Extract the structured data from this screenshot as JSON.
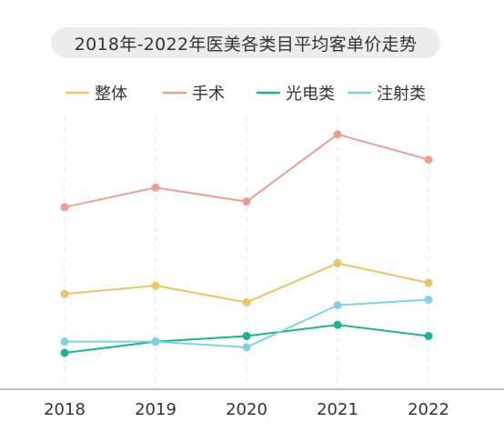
{
  "chart_data": {
    "type": "line",
    "title": "2018年-2022年医美各类目平均客单价走势",
    "categories": [
      "2018",
      "2019",
      "2020",
      "2021",
      "2022"
    ],
    "ylim": [
      0,
      100
    ],
    "grid": "vertical-dashed",
    "legend_position": "top",
    "series": [
      {
        "name": "整体",
        "color": "#e8c46a",
        "values": [
          34,
          37,
          31,
          45,
          38
        ]
      },
      {
        "name": "手术",
        "color": "#eb9f94",
        "values": [
          65,
          72,
          67,
          91,
          82
        ]
      },
      {
        "name": "光电类",
        "color": "#1bb394",
        "values": [
          13,
          17,
          19,
          23,
          19
        ]
      },
      {
        "name": "注射类",
        "color": "#7fd3e0",
        "values": [
          17,
          17,
          15,
          30,
          32
        ]
      }
    ]
  }
}
